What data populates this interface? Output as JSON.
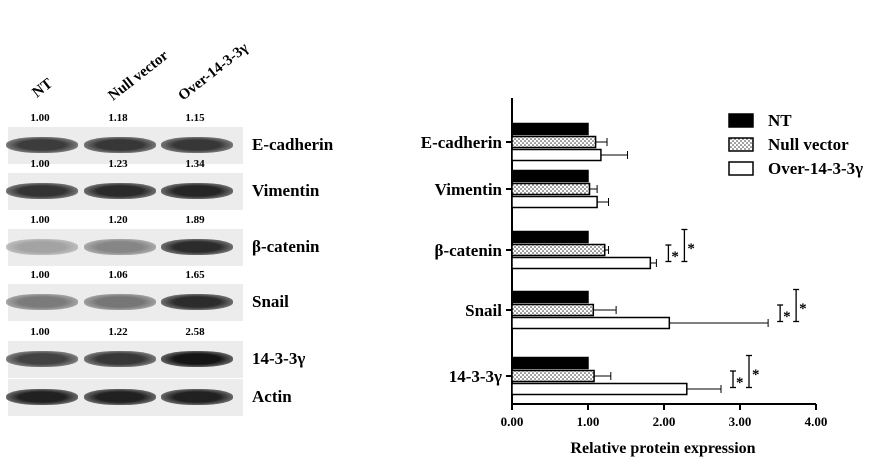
{
  "blot": {
    "lanes": [
      "NT",
      "Null vector",
      "Over-14-3-3γ"
    ],
    "rows": [
      {
        "protein": "E-cadherin",
        "quant": [
          "1.00",
          "1.18",
          "1.15"
        ],
        "intensity": [
          0.78,
          0.8,
          0.8
        ]
      },
      {
        "protein": "Vimentin",
        "quant": [
          "1.00",
          "1.23",
          "1.34"
        ],
        "intensity": [
          0.82,
          0.86,
          0.88
        ]
      },
      {
        "protein": "β-catenin",
        "quant": [
          "1.00",
          "1.20",
          "1.89"
        ],
        "intensity": [
          0.32,
          0.45,
          0.85
        ]
      },
      {
        "protein": "Snail",
        "quant": [
          "1.00",
          "1.06",
          "1.65"
        ],
        "intensity": [
          0.5,
          0.52,
          0.85
        ]
      },
      {
        "protein": "14-3-3γ",
        "quant": [
          "1.00",
          "1.22",
          "2.58"
        ],
        "intensity": [
          0.75,
          0.8,
          0.95
        ]
      },
      {
        "protein": "Actin",
        "quant": [
          "",
          "",
          ""
        ],
        "intensity": [
          0.9,
          0.9,
          0.9
        ]
      }
    ]
  },
  "chart_data": {
    "type": "bar",
    "orientation": "horizontal",
    "categories": [
      "E-cadherin",
      "Vimentin",
      "β-catenin",
      "Snail",
      "14-3-3γ"
    ],
    "series": [
      {
        "name": "NT",
        "values": [
          1.0,
          1.0,
          1.0,
          1.0,
          1.0
        ],
        "errors": [
          0.0,
          0.0,
          0.0,
          0.0,
          0.0
        ],
        "fill": "black"
      },
      {
        "name": "Null vector",
        "values": [
          1.1,
          1.02,
          1.22,
          1.07,
          1.08
        ],
        "errors": [
          0.15,
          0.1,
          0.05,
          0.3,
          0.22
        ],
        "fill": "dotted"
      },
      {
        "name": "Over-14-3-3γ",
        "values": [
          1.17,
          1.12,
          1.82,
          2.07,
          2.3
        ],
        "errors": [
          0.35,
          0.15,
          0.08,
          1.3,
          0.45
        ],
        "fill": "white"
      }
    ],
    "xlabel": "Relative protein expression",
    "xlim": [
      0,
      4
    ],
    "xticks": [
      "0.00",
      "1.00",
      "2.00",
      "3.00",
      "4.00"
    ],
    "significance": [
      {
        "category": "β-catenin",
        "marks": [
          "*",
          "*"
        ]
      },
      {
        "category": "Snail",
        "marks": [
          "*",
          "*"
        ]
      },
      {
        "category": "14-3-3γ",
        "marks": [
          "*",
          "*"
        ]
      }
    ],
    "legend_position": "top-right",
    "grid": false
  }
}
